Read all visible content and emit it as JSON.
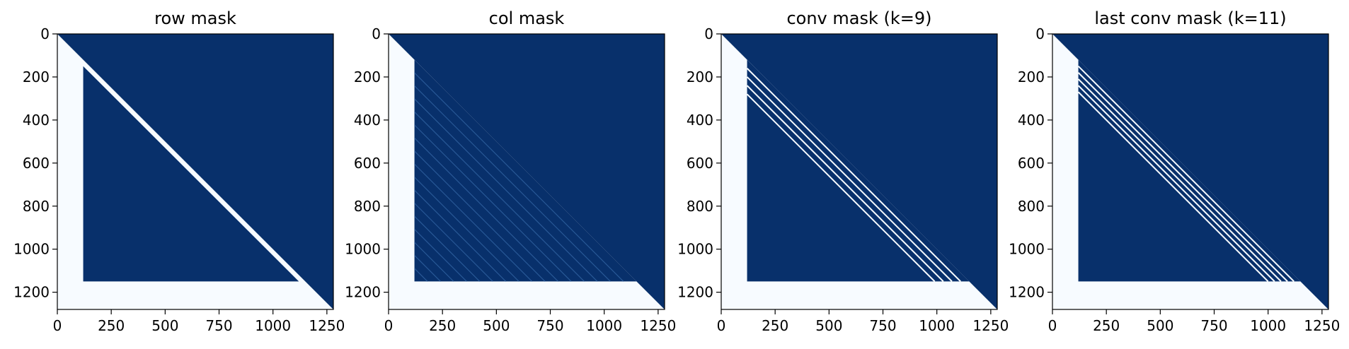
{
  "figure": {
    "colors": {
      "mask": "#f7fbff",
      "fill": "#08306b",
      "band": "#2e5f9e"
    }
  },
  "chart_data": [
    {
      "type": "heatmap",
      "title": "row mask",
      "xlim": [
        0,
        1280
      ],
      "ylim": [
        1280,
        0
      ],
      "xticks": [
        0,
        250,
        500,
        750,
        1000,
        1250
      ],
      "yticks": [
        0,
        200,
        400,
        600,
        800,
        1000,
        1200
      ],
      "colormap": "Blues",
      "masked_regions": {
        "first_columns_masked_up_to": 120,
        "last_row_masked_from": 1150,
        "diagonal_band_width": 30,
        "diagonal_lines": []
      }
    },
    {
      "type": "heatmap",
      "title": "col mask",
      "xlim": [
        0,
        1280
      ],
      "ylim": [
        1280,
        0
      ],
      "xticks": [
        0,
        250,
        500,
        750,
        1000,
        1250
      ],
      "yticks": [
        0,
        200,
        400,
        600,
        800,
        1000,
        1200
      ],
      "colormap": "Blues",
      "masked_regions": {
        "first_columns_masked_up_to": 120,
        "last_row_masked_from": 1150,
        "diagonal_band_width": 0,
        "faint_diagonal_lines": 16,
        "diagonal_lines": []
      }
    },
    {
      "type": "heatmap",
      "title": "conv mask (k=9)",
      "xlim": [
        0,
        1280
      ],
      "ylim": [
        1280,
        0
      ],
      "xticks": [
        0,
        250,
        500,
        750,
        1000,
        1250
      ],
      "yticks": [
        0,
        200,
        400,
        600,
        800,
        1000,
        1200
      ],
      "colormap": "Blues",
      "masked_regions": {
        "first_columns_masked_up_to": 120,
        "last_row_masked_from": 1150,
        "diagonal_band_width": 0,
        "diagonal_lines": [
          40,
          80,
          120,
          160
        ]
      }
    },
    {
      "type": "heatmap",
      "title": "last conv mask (k=11)",
      "xlim": [
        0,
        1280
      ],
      "ylim": [
        1280,
        0
      ],
      "xticks": [
        0,
        250,
        500,
        750,
        1000,
        1250
      ],
      "yticks": [
        0,
        200,
        400,
        600,
        800,
        1000,
        1200
      ],
      "colormap": "Blues",
      "masked_regions": {
        "first_columns_masked_up_to": 120,
        "last_row_masked_from": 1150,
        "diagonal_band_width": 0,
        "diagonal_lines": [
          30,
          60,
          90,
          120,
          150
        ]
      }
    }
  ]
}
